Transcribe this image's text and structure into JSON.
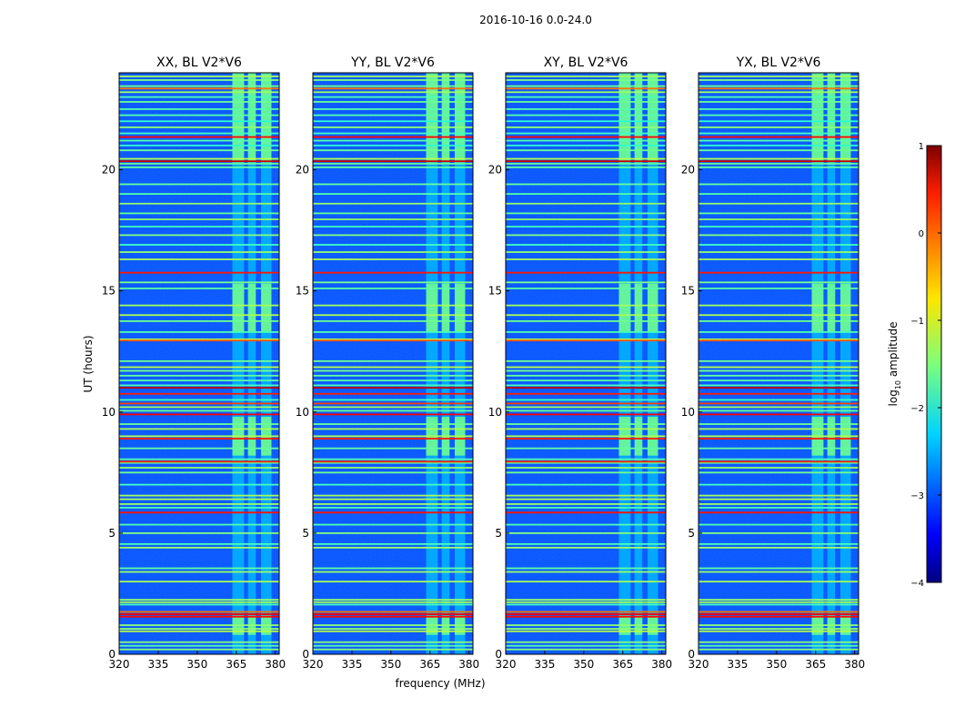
{
  "figure_title": "2016-10-16 0.0-24.0",
  "chart_data": {
    "type": "heatmap",
    "title": "2016-10-16 0.0-24.0",
    "xlabel": "frequency (MHz)",
    "ylabel": "UT (hours)",
    "xlim": [
      320,
      381.5
    ],
    "ylim": [
      0,
      24
    ],
    "xticks": [
      "320",
      "335",
      "350",
      "365",
      "380"
    ],
    "yticks": [
      "0",
      "5",
      "10",
      "15",
      "20"
    ],
    "panels": [
      {
        "name": "xx",
        "title": "XX, BL V2*V6"
      },
      {
        "name": "yy",
        "title": "YY, BL V2*V6"
      },
      {
        "name": "xy",
        "title": "XY, BL V2*V6"
      },
      {
        "name": "yx",
        "title": "YX, BL V2*V6"
      }
    ],
    "colorbar": {
      "label_main": "log",
      "label_sub": "10",
      "label_tail": " amplitude",
      "range": [
        -4,
        1
      ],
      "ticks": [
        "−4",
        "−3",
        "−2",
        "−1",
        "0",
        "1"
      ],
      "colormap": "jet"
    },
    "background_level": -3.0,
    "rfi_bands_mhz": [
      [
        363.5,
        368
      ],
      [
        369.5,
        372.5
      ],
      [
        374.5,
        378.5
      ]
    ],
    "quiet_interval_ut": [
      1.5,
      20.3
    ],
    "high_activity_intervals_ut": [
      [
        20.3,
        24
      ],
      [
        8.2,
        9.8
      ],
      [
        13.3,
        15.3
      ],
      [
        0.8,
        1.6
      ]
    ]
  },
  "colors": {
    "jet_low": "#00007f",
    "jet_background": "#0a2ee6",
    "jet_mid": "#3cffc3",
    "jet_high": "#ff3000",
    "jet_max": "#7f0000"
  }
}
